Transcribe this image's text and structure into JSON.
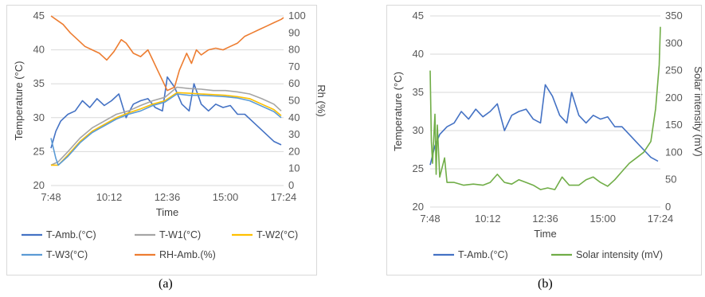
{
  "captions": [
    "(a)",
    "(b)"
  ],
  "chart_data": [
    {
      "type": "line",
      "x_ticks": [
        "7:48",
        "10:12",
        "12:36",
        "15:00",
        "17:24"
      ],
      "xlabel": "Time",
      "ylabel": "Temperature (°C)",
      "ylabel_right": "Rh (%)",
      "ylim": [
        20,
        45
      ],
      "ylim_right": [
        0,
        100
      ],
      "y_ticks": [
        "20",
        "25",
        "30",
        "35",
        "40",
        "45"
      ],
      "y_ticks_right": [
        "0",
        "10",
        "20",
        "30",
        "40",
        "50",
        "60",
        "70",
        "80",
        "90",
        "100"
      ],
      "grid": true,
      "legend_position": "bottom",
      "series": [
        {
          "name": "T-Amb.(°C)",
          "axis": "left",
          "color": "#4472c4",
          "points": [
            [
              7.8,
              25.5
            ],
            [
              8.0,
              28.0
            ],
            [
              8.2,
              29.5
            ],
            [
              8.5,
              30.5
            ],
            [
              8.8,
              31.0
            ],
            [
              9.1,
              32.5
            ],
            [
              9.4,
              31.5
            ],
            [
              9.7,
              32.8
            ],
            [
              10.0,
              31.8
            ],
            [
              10.3,
              32.5
            ],
            [
              10.6,
              33.5
            ],
            [
              10.9,
              30.0
            ],
            [
              11.2,
              32.0
            ],
            [
              11.5,
              32.5
            ],
            [
              11.8,
              32.8
            ],
            [
              12.1,
              31.5
            ],
            [
              12.4,
              31.0
            ],
            [
              12.6,
              36.0
            ],
            [
              12.9,
              34.5
            ],
            [
              13.2,
              32.0
            ],
            [
              13.5,
              31.0
            ],
            [
              13.7,
              35.0
            ],
            [
              14.0,
              32.0
            ],
            [
              14.3,
              31.0
            ],
            [
              14.6,
              32.0
            ],
            [
              14.9,
              31.5
            ],
            [
              15.2,
              31.8
            ],
            [
              15.5,
              30.5
            ],
            [
              15.8,
              30.5
            ],
            [
              16.1,
              29.5
            ],
            [
              16.4,
              28.5
            ],
            [
              16.7,
              27.5
            ],
            [
              17.0,
              26.5
            ],
            [
              17.3,
              26.0
            ]
          ]
        },
        {
          "name": "T-W1(°C)",
          "axis": "left",
          "color": "#a5a5a5",
          "points": [
            [
              7.8,
              23.0
            ],
            [
              8.1,
              23.5
            ],
            [
              8.5,
              25.0
            ],
            [
              9.0,
              27.0
            ],
            [
              9.5,
              28.5
            ],
            [
              10.0,
              29.5
            ],
            [
              10.5,
              30.5
            ],
            [
              11.0,
              31.0
            ],
            [
              11.5,
              31.8
            ],
            [
              12.0,
              32.5
            ],
            [
              12.5,
              33.0
            ],
            [
              13.0,
              34.5
            ],
            [
              13.5,
              34.3
            ],
            [
              14.0,
              34.2
            ],
            [
              14.5,
              34.0
            ],
            [
              15.0,
              34.0
            ],
            [
              15.5,
              33.8
            ],
            [
              16.0,
              33.5
            ],
            [
              16.5,
              32.8
            ],
            [
              17.0,
              32.0
            ],
            [
              17.3,
              31.0
            ]
          ]
        },
        {
          "name": "T-W2(°C)",
          "axis": "left",
          "color": "#ffc000",
          "points": [
            [
              7.8,
              23.0
            ],
            [
              8.1,
              23.0
            ],
            [
              8.5,
              24.5
            ],
            [
              9.0,
              26.5
            ],
            [
              9.5,
              28.0
            ],
            [
              10.0,
              29.0
            ],
            [
              10.5,
              30.0
            ],
            [
              11.0,
              30.7
            ],
            [
              11.5,
              31.3
            ],
            [
              12.0,
              32.0
            ],
            [
              12.5,
              32.5
            ],
            [
              13.0,
              33.7
            ],
            [
              13.5,
              33.6
            ],
            [
              14.0,
              33.5
            ],
            [
              14.5,
              33.4
            ],
            [
              15.0,
              33.3
            ],
            [
              15.5,
              33.1
            ],
            [
              16.0,
              32.8
            ],
            [
              16.5,
              32.0
            ],
            [
              17.0,
              31.2
            ],
            [
              17.3,
              30.3
            ]
          ]
        },
        {
          "name": "T-W3(°C)",
          "axis": "left",
          "color": "#5b9bd5",
          "points": [
            [
              7.8,
              27.0
            ],
            [
              8.0,
              24.0
            ],
            [
              8.1,
              23.0
            ],
            [
              8.5,
              24.3
            ],
            [
              9.0,
              26.3
            ],
            [
              9.5,
              27.8
            ],
            [
              10.0,
              28.8
            ],
            [
              10.5,
              29.8
            ],
            [
              11.0,
              30.5
            ],
            [
              11.5,
              31.0
            ],
            [
              12.0,
              31.8
            ],
            [
              12.5,
              32.3
            ],
            [
              13.0,
              33.5
            ],
            [
              13.5,
              33.3
            ],
            [
              14.0,
              33.3
            ],
            [
              14.5,
              33.2
            ],
            [
              15.0,
              33.1
            ],
            [
              15.5,
              32.9
            ],
            [
              16.0,
              32.5
            ],
            [
              16.5,
              31.7
            ],
            [
              17.0,
              30.9
            ],
            [
              17.3,
              30.0
            ]
          ]
        },
        {
          "name": "RH-Amb.(%)",
          "axis": "right",
          "color": "#ed7d31",
          "points": [
            [
              7.8,
              100
            ],
            [
              8.0,
              98
            ],
            [
              8.3,
              95
            ],
            [
              8.6,
              90
            ],
            [
              8.9,
              86
            ],
            [
              9.2,
              82
            ],
            [
              9.5,
              80
            ],
            [
              9.8,
              78
            ],
            [
              10.1,
              74
            ],
            [
              10.4,
              79
            ],
            [
              10.7,
              86
            ],
            [
              10.9,
              84
            ],
            [
              11.2,
              78
            ],
            [
              11.5,
              76
            ],
            [
              11.8,
              80
            ],
            [
              12.0,
              74
            ],
            [
              12.2,
              68
            ],
            [
              12.4,
              62
            ],
            [
              12.6,
              56
            ],
            [
              12.9,
              58
            ],
            [
              13.1,
              68
            ],
            [
              13.4,
              78
            ],
            [
              13.6,
              72
            ],
            [
              13.8,
              80
            ],
            [
              14.0,
              77
            ],
            [
              14.3,
              80
            ],
            [
              14.6,
              81
            ],
            [
              14.9,
              80
            ],
            [
              15.2,
              82
            ],
            [
              15.5,
              84
            ],
            [
              15.8,
              88
            ],
            [
              16.1,
              90
            ],
            [
              16.4,
              92
            ],
            [
              16.7,
              94
            ],
            [
              17.0,
              96
            ],
            [
              17.3,
              98
            ],
            [
              17.4,
              99
            ]
          ]
        }
      ]
    },
    {
      "type": "line",
      "x_ticks": [
        "7:48",
        "10:12",
        "12:36",
        "15:00",
        "17:24"
      ],
      "xlabel": "Time",
      "ylabel": "Temperature (°C)",
      "ylabel_right": "Solar intensity (mV)",
      "ylim": [
        20,
        45
      ],
      "ylim_right": [
        0,
        350
      ],
      "y_ticks": [
        "20",
        "25",
        "30",
        "35",
        "40",
        "45"
      ],
      "y_ticks_right": [
        "0",
        "50",
        "100",
        "150",
        "200",
        "250",
        "300",
        "350"
      ],
      "grid": true,
      "legend_position": "bottom",
      "series": [
        {
          "name": "T-Amb.(°C)",
          "axis": "left",
          "color": "#4472c4",
          "points": [
            [
              7.8,
              25.5
            ],
            [
              8.0,
              28.0
            ],
            [
              8.2,
              29.5
            ],
            [
              8.5,
              30.5
            ],
            [
              8.8,
              31.0
            ],
            [
              9.1,
              32.5
            ],
            [
              9.4,
              31.5
            ],
            [
              9.7,
              32.8
            ],
            [
              10.0,
              31.8
            ],
            [
              10.3,
              32.5
            ],
            [
              10.6,
              33.5
            ],
            [
              10.9,
              30.0
            ],
            [
              11.2,
              32.0
            ],
            [
              11.5,
              32.5
            ],
            [
              11.8,
              32.8
            ],
            [
              12.1,
              31.5
            ],
            [
              12.4,
              31.0
            ],
            [
              12.6,
              36.0
            ],
            [
              12.9,
              34.5
            ],
            [
              13.2,
              32.0
            ],
            [
              13.5,
              31.0
            ],
            [
              13.7,
              35.0
            ],
            [
              14.0,
              32.0
            ],
            [
              14.3,
              31.0
            ],
            [
              14.6,
              32.0
            ],
            [
              14.9,
              31.5
            ],
            [
              15.2,
              31.8
            ],
            [
              15.5,
              30.5
            ],
            [
              15.8,
              30.5
            ],
            [
              16.1,
              29.5
            ],
            [
              16.4,
              28.5
            ],
            [
              16.7,
              27.5
            ],
            [
              17.0,
              26.5
            ],
            [
              17.3,
              26.0
            ]
          ]
        },
        {
          "name": "Solar intensity (mV)",
          "axis": "right",
          "color": "#70ad47",
          "points": [
            [
              7.8,
              250
            ],
            [
              7.85,
              120
            ],
            [
              7.9,
              80
            ],
            [
              8.0,
              170
            ],
            [
              8.05,
              60
            ],
            [
              8.1,
              150
            ],
            [
              8.2,
              55
            ],
            [
              8.4,
              90
            ],
            [
              8.5,
              45
            ],
            [
              8.8,
              45
            ],
            [
              9.2,
              40
            ],
            [
              9.6,
              42
            ],
            [
              10.0,
              40
            ],
            [
              10.3,
              45
            ],
            [
              10.6,
              60
            ],
            [
              10.9,
              45
            ],
            [
              11.2,
              42
            ],
            [
              11.5,
              50
            ],
            [
              11.8,
              45
            ],
            [
              12.1,
              40
            ],
            [
              12.4,
              32
            ],
            [
              12.7,
              35
            ],
            [
              13.0,
              32
            ],
            [
              13.3,
              55
            ],
            [
              13.6,
              40
            ],
            [
              14.0,
              40
            ],
            [
              14.3,
              50
            ],
            [
              14.6,
              55
            ],
            [
              14.9,
              45
            ],
            [
              15.2,
              38
            ],
            [
              15.5,
              50
            ],
            [
              15.8,
              65
            ],
            [
              16.1,
              80
            ],
            [
              16.4,
              90
            ],
            [
              16.7,
              100
            ],
            [
              17.0,
              120
            ],
            [
              17.2,
              180
            ],
            [
              17.35,
              260
            ],
            [
              17.4,
              330
            ]
          ]
        }
      ]
    }
  ]
}
